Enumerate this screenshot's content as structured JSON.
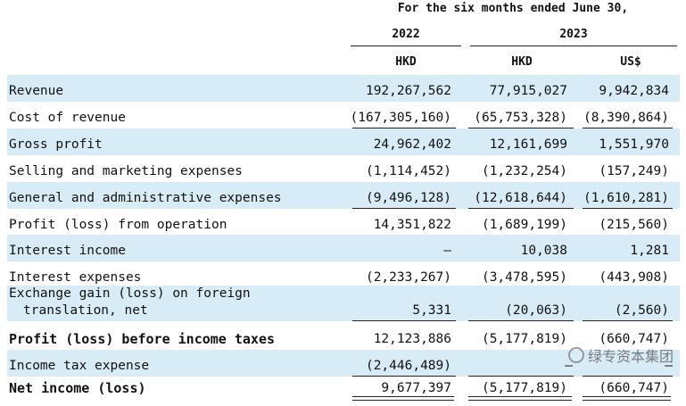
{
  "header": {
    "period": "For the six months ended June 30,",
    "years": [
      "2022",
      "2023"
    ],
    "currencies": [
      "HKD",
      "HKD",
      "US$"
    ]
  },
  "rows": [
    {
      "label": "Revenue",
      "v2022_hkd": "192,267,562",
      "v2023_hkd": "77,915,027",
      "v2023_usd": "9,942,834"
    },
    {
      "label": "Cost of revenue",
      "v2022_hkd": "(167,305,160)",
      "v2023_hkd": "(65,753,328)",
      "v2023_usd": "(8,390,864)"
    },
    {
      "label": "Gross profit",
      "v2022_hkd": "24,962,402",
      "v2023_hkd": "12,161,699",
      "v2023_usd": "1,551,970"
    },
    {
      "label": "Selling and marketing expenses",
      "v2022_hkd": "(1,114,452)",
      "v2023_hkd": "(1,232,254)",
      "v2023_usd": "(157,249)"
    },
    {
      "label": "General and administrative expenses",
      "v2022_hkd": "(9,496,128)",
      "v2023_hkd": "(12,618,644)",
      "v2023_usd": "(1,610,281)"
    },
    {
      "label": "Profit (loss) from operation",
      "v2022_hkd": "14,351,822",
      "v2023_hkd": "(1,689,199)",
      "v2023_usd": "(215,560)"
    },
    {
      "label": "Interest income",
      "v2022_hkd": "—",
      "v2023_hkd": "10,038",
      "v2023_usd": "1,281"
    },
    {
      "label": "Interest expenses",
      "v2022_hkd": "(2,233,267)",
      "v2023_hkd": "(3,478,595)",
      "v2023_usd": "(443,908)"
    },
    {
      "label_line1": "Exchange gain (loss) on foreign",
      "label_line2": "translation, net",
      "v2022_hkd": "5,331",
      "v2023_hkd": "(20,063)",
      "v2023_usd": "(2,560)"
    },
    {
      "label": "Profit (loss) before income taxes",
      "v2022_hkd": "12,123,886",
      "v2023_hkd": "(5,177,819)",
      "v2023_usd": "(660,747)"
    },
    {
      "label": "Income tax expense",
      "v2022_hkd": "(2,446,489)",
      "v2023_hkd": "—",
      "v2023_usd": "—"
    },
    {
      "label": "Net income (loss)",
      "v2022_hkd": "9,677,397",
      "v2023_hkd": "(5,177,819)",
      "v2023_usd": "(660,747)"
    }
  ],
  "watermark": "绿专资本集团"
}
